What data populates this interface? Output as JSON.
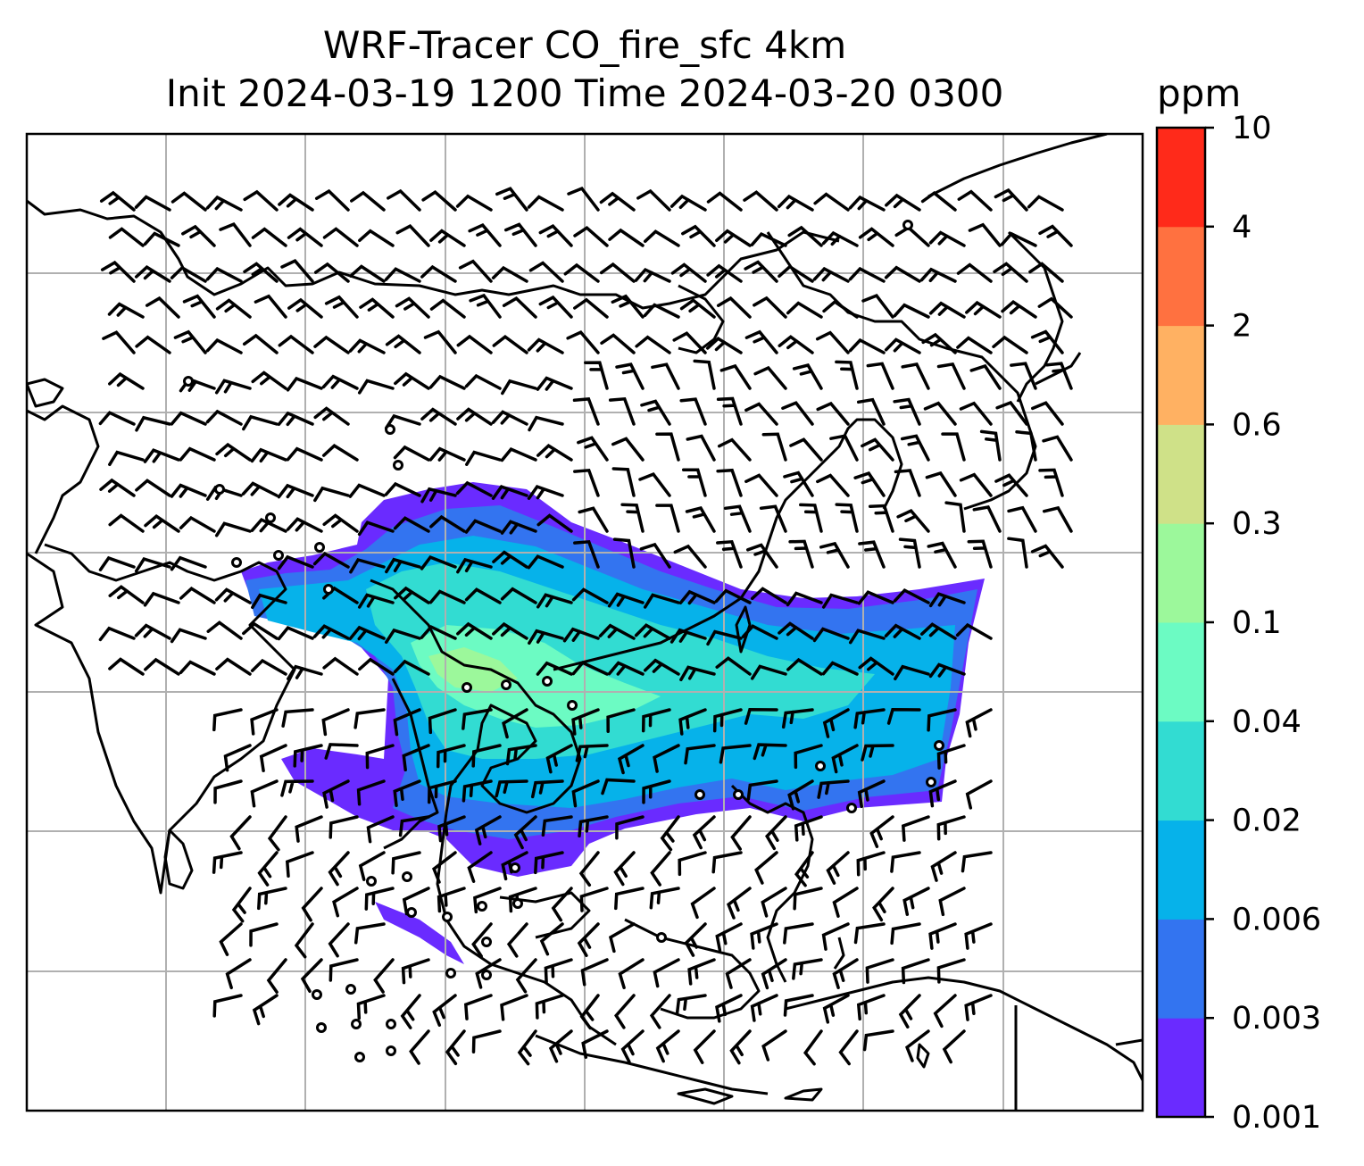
{
  "title": {
    "line1": "WRF-Tracer CO_fire_sfc 4km",
    "line2": "Init 2024-03-19 1200 Time 2024-03-20 0300"
  },
  "colorbar": {
    "units": "ppm",
    "levels": [
      "0.001",
      "0.003",
      "0.006",
      "0.02",
      "0.04",
      "0.1",
      "0.3",
      "0.6",
      "2",
      "4",
      "10"
    ],
    "colors": [
      "#6a2bff",
      "#3374f0",
      "#06b2ea",
      "#32dcd2",
      "#6cfbc3",
      "#9cf89b",
      "#cfe188",
      "#ffb162",
      "#ff7140",
      "#ff2a1a"
    ]
  },
  "map": {
    "gridlines": true,
    "grid_color": "#b0b0b0",
    "coastline_color": "#000000",
    "wind_barb_color": "#000000"
  }
}
